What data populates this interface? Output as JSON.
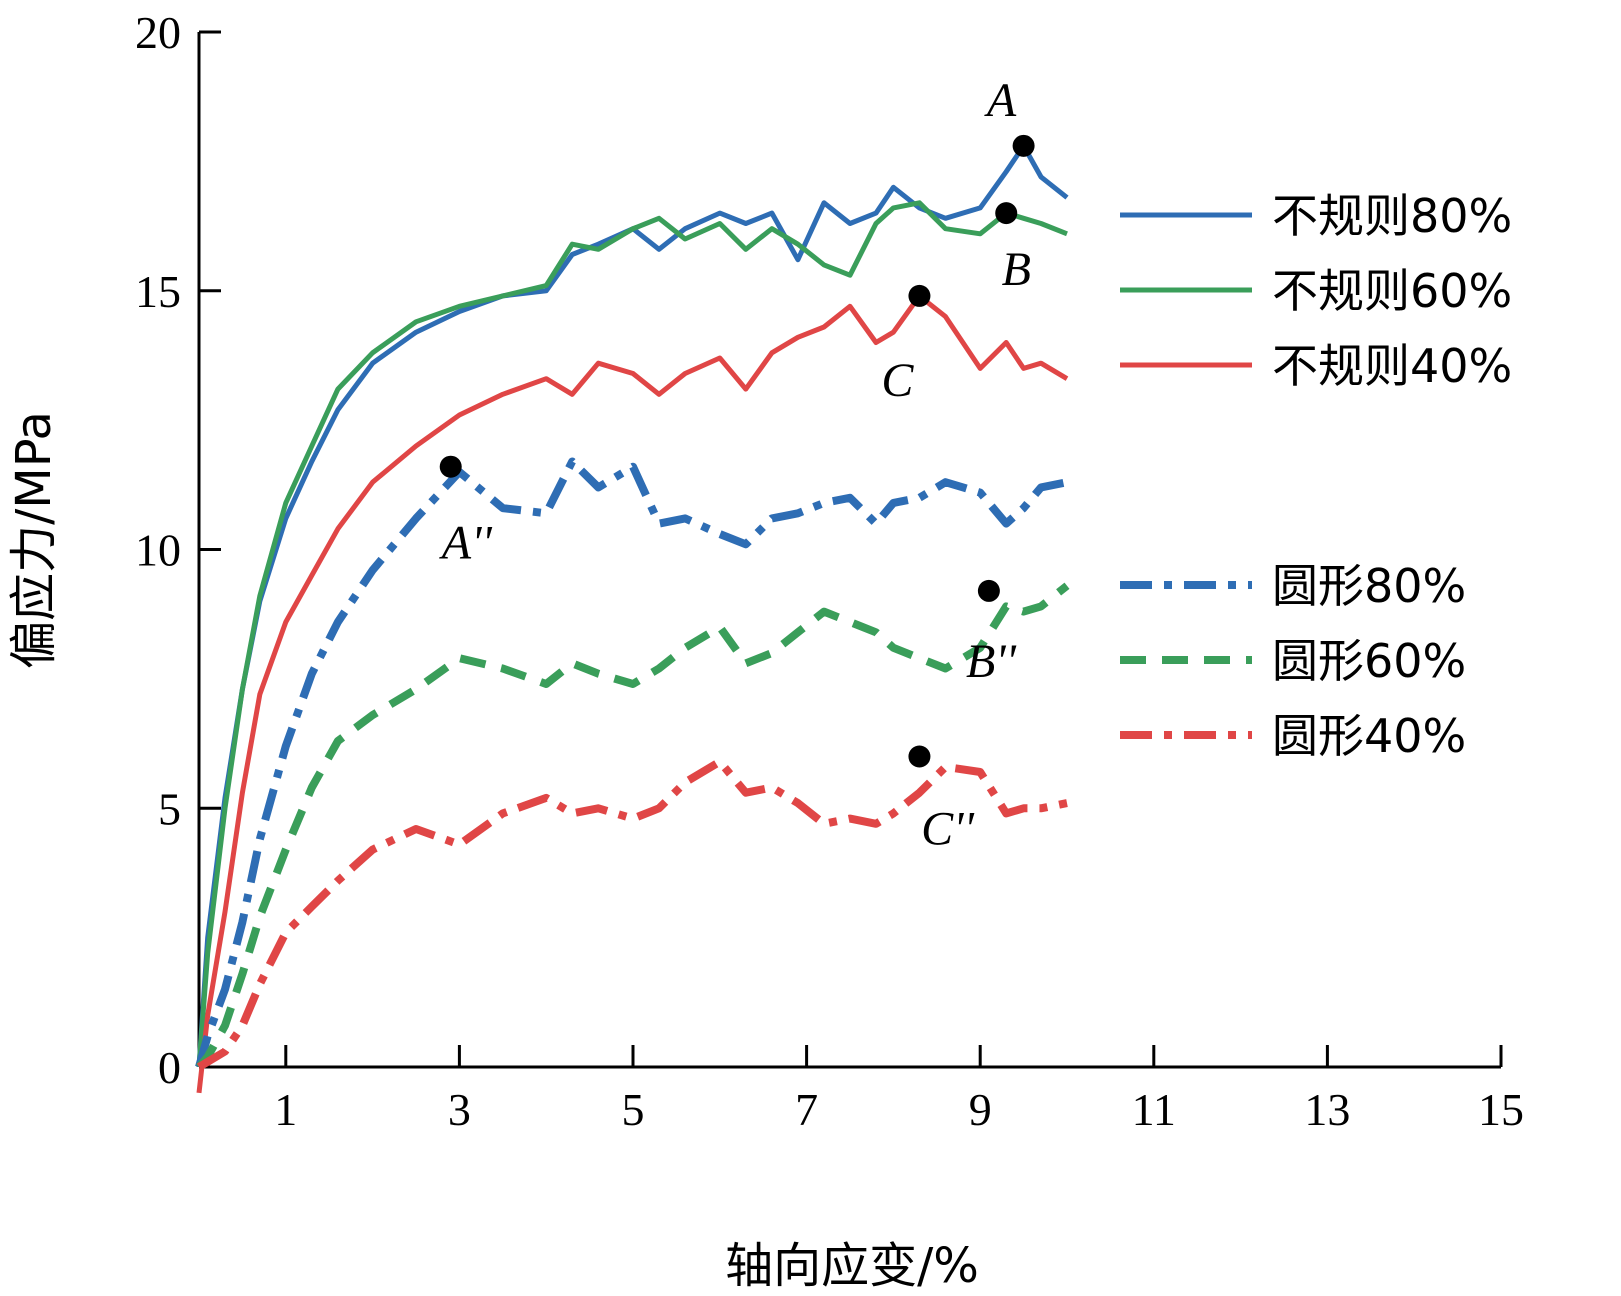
{
  "chart_data": {
    "type": "line",
    "xlabel": "轴向应变/%",
    "ylabel": "偏应力/MPa",
    "xlim": [
      0,
      15
    ],
    "ylim": [
      0,
      20
    ],
    "xticks": [
      1,
      3,
      5,
      7,
      9,
      11,
      13,
      15
    ],
    "yticks": [
      0,
      5,
      10,
      15,
      20
    ],
    "grid": false,
    "legend_position": "right",
    "series": [
      {
        "name": "不规则80%",
        "color": "#2e6db4",
        "style": "solid",
        "x": [
          0,
          0.1,
          0.3,
          0.5,
          0.7,
          1.0,
          1.3,
          1.6,
          2.0,
          2.5,
          3.0,
          3.5,
          4.0,
          4.3,
          4.6,
          5.0,
          5.3,
          5.6,
          6.0,
          6.3,
          6.6,
          6.9,
          7.2,
          7.5,
          7.8,
          8.0,
          8.3,
          8.6,
          9.0,
          9.3,
          9.5,
          9.7,
          10.0
        ],
        "y": [
          0,
          2.5,
          5.2,
          7.3,
          9.0,
          10.6,
          11.7,
          12.7,
          13.6,
          14.2,
          14.6,
          14.9,
          15.0,
          15.7,
          15.9,
          16.2,
          15.8,
          16.2,
          16.5,
          16.3,
          16.5,
          15.6,
          16.7,
          16.3,
          16.5,
          17.0,
          16.6,
          16.4,
          16.6,
          17.3,
          17.8,
          17.2,
          16.8
        ]
      },
      {
        "name": "不规则60%",
        "color": "#3a9e5a",
        "style": "solid",
        "x": [
          0,
          0.1,
          0.3,
          0.5,
          0.7,
          1.0,
          1.3,
          1.6,
          2.0,
          2.5,
          3.0,
          3.5,
          4.0,
          4.3,
          4.6,
          5.0,
          5.3,
          5.6,
          6.0,
          6.3,
          6.6,
          6.9,
          7.2,
          7.5,
          7.8,
          8.0,
          8.3,
          8.6,
          9.0,
          9.3,
          9.5,
          9.7,
          10.0
        ],
        "y": [
          0,
          2.2,
          5.0,
          7.3,
          9.1,
          10.9,
          12.0,
          13.1,
          13.8,
          14.4,
          14.7,
          14.9,
          15.1,
          15.9,
          15.8,
          16.2,
          16.4,
          16.0,
          16.3,
          15.8,
          16.2,
          15.9,
          15.5,
          15.3,
          16.3,
          16.6,
          16.7,
          16.2,
          16.1,
          16.5,
          16.4,
          16.3,
          16.1
        ]
      },
      {
        "name": "不规则40%",
        "color": "#e04646",
        "style": "solid",
        "x": [
          0,
          0.1,
          0.3,
          0.5,
          0.7,
          1.0,
          1.3,
          1.6,
          2.0,
          2.5,
          3.0,
          3.5,
          4.0,
          4.3,
          4.6,
          5.0,
          5.3,
          5.6,
          6.0,
          6.3,
          6.6,
          6.9,
          7.2,
          7.5,
          7.8,
          8.0,
          8.3,
          8.6,
          9.0,
          9.3,
          9.5,
          9.7,
          10.0
        ],
        "y": [
          -0.5,
          1.0,
          3.0,
          5.3,
          7.2,
          8.6,
          9.5,
          10.4,
          11.3,
          12.0,
          12.6,
          13.0,
          13.3,
          13.0,
          13.6,
          13.4,
          13.0,
          13.4,
          13.7,
          13.1,
          13.8,
          14.1,
          14.3,
          14.7,
          14.0,
          14.2,
          14.9,
          14.5,
          13.5,
          14.0,
          13.5,
          13.6,
          13.3
        ]
      },
      {
        "name": "圆形80%",
        "color": "#2e6db4",
        "style": "dashdot",
        "x": [
          0,
          0.1,
          0.3,
          0.5,
          0.7,
          1.0,
          1.3,
          1.6,
          2.0,
          2.5,
          3.0,
          3.5,
          4.0,
          4.3,
          4.6,
          5.0,
          5.3,
          5.6,
          6.0,
          6.3,
          6.6,
          6.9,
          7.2,
          7.5,
          7.8,
          8.0,
          8.3,
          8.6,
          9.0,
          9.3,
          9.5,
          9.7,
          10.0
        ],
        "y": [
          0,
          0.6,
          1.5,
          2.8,
          4.4,
          6.2,
          7.6,
          8.6,
          9.6,
          10.6,
          11.5,
          10.8,
          10.7,
          11.7,
          11.2,
          11.6,
          10.5,
          10.6,
          10.3,
          10.1,
          10.6,
          10.7,
          10.9,
          11.0,
          10.5,
          10.9,
          11.0,
          11.3,
          11.1,
          10.5,
          10.8,
          11.2,
          11.3
        ]
      },
      {
        "name": "圆形60%",
        "color": "#3a9e5a",
        "style": "dashed",
        "x": [
          0,
          0.1,
          0.3,
          0.5,
          0.7,
          1.0,
          1.3,
          1.6,
          2.0,
          2.5,
          3.0,
          3.5,
          4.0,
          4.3,
          4.6,
          5.0,
          5.3,
          5.6,
          6.0,
          6.3,
          6.6,
          6.9,
          7.2,
          7.5,
          7.8,
          8.0,
          8.3,
          8.6,
          9.0,
          9.3,
          9.5,
          9.7,
          10.0
        ],
        "y": [
          0,
          0.2,
          0.8,
          1.8,
          2.9,
          4.2,
          5.4,
          6.3,
          6.8,
          7.3,
          7.9,
          7.7,
          7.4,
          7.8,
          7.6,
          7.4,
          7.7,
          8.1,
          8.5,
          7.8,
          8.0,
          8.4,
          8.8,
          8.6,
          8.4,
          8.1,
          7.9,
          7.7,
          8.1,
          8.9,
          8.8,
          8.9,
          9.3
        ]
      },
      {
        "name": "圆形40%",
        "color": "#e04646",
        "style": "dashdot",
        "x": [
          0,
          0.1,
          0.3,
          0.5,
          0.7,
          1.0,
          1.3,
          1.6,
          2.0,
          2.5,
          3.0,
          3.5,
          4.0,
          4.3,
          4.6,
          5.0,
          5.3,
          5.6,
          6.0,
          6.3,
          6.6,
          6.9,
          7.2,
          7.5,
          7.8,
          8.0,
          8.3,
          8.6,
          9.0,
          9.3,
          9.5,
          9.7,
          10.0
        ],
        "y": [
          0,
          0.1,
          0.3,
          0.8,
          1.6,
          2.6,
          3.1,
          3.6,
          4.2,
          4.6,
          4.3,
          4.9,
          5.2,
          4.9,
          5.0,
          4.8,
          5.0,
          5.5,
          5.9,
          5.3,
          5.4,
          5.1,
          4.7,
          4.8,
          4.7,
          4.9,
          5.3,
          5.8,
          5.7,
          4.9,
          5.0,
          5.0,
          5.1
        ]
      }
    ],
    "annotations": [
      {
        "label": "A",
        "x": 9.5,
        "y": 17.8
      },
      {
        "label": "B",
        "x": 9.3,
        "y": 16.5
      },
      {
        "label": "C",
        "x": 8.3,
        "y": 14.9
      },
      {
        "label": "A''",
        "x": 2.9,
        "y": 11.6
      },
      {
        "label": "B''",
        "x": 9.1,
        "y": 9.2
      },
      {
        "label": "C''",
        "x": 8.3,
        "y": 6.0
      }
    ]
  }
}
